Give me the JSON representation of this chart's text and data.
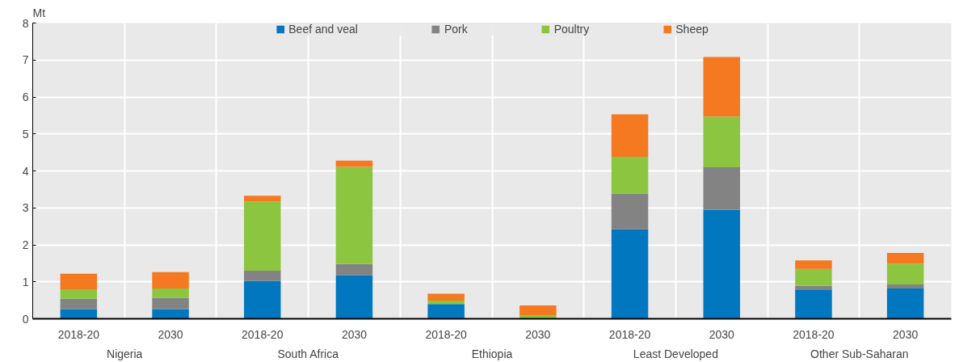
{
  "chart_data": {
    "type": "bar",
    "stacked": true,
    "ylabel": "Mt",
    "categories": [
      "2018-20",
      "2030",
      "2018-20",
      "2030",
      "2018-20",
      "2030",
      "2018-20",
      "2030",
      "2018-20",
      "2030"
    ],
    "annotations": [
      "Nigeria",
      "South Africa",
      "Ethiopia",
      "Least Developed",
      "Other Sub-Saharan"
    ],
    "series": [
      {
        "name": "Beef and veal",
        "color": "#0077bf",
        "values": [
          0.26,
          0.26,
          1.03,
          1.18,
          0.4,
          0.0,
          2.42,
          2.95,
          0.79,
          0.82
        ]
      },
      {
        "name": "Pork",
        "color": "#838383",
        "values": [
          0.28,
          0.31,
          0.27,
          0.3,
          0.0,
          0.0,
          0.97,
          1.15,
          0.1,
          0.11
        ]
      },
      {
        "name": "Poultry",
        "color": "#8cc641",
        "values": [
          0.26,
          0.25,
          1.87,
          2.63,
          0.09,
          0.1,
          0.99,
          1.37,
          0.46,
          0.56
        ]
      },
      {
        "name": "Sheep",
        "color": "#f47920",
        "values": [
          0.42,
          0.44,
          0.16,
          0.17,
          0.19,
          0.26,
          1.15,
          1.61,
          0.23,
          0.29
        ]
      }
    ],
    "ylim": [
      0,
      8
    ],
    "yticks": [
      0,
      1,
      2,
      3,
      4,
      5,
      6,
      7,
      8
    ],
    "grid": true,
    "legend": "top"
  }
}
